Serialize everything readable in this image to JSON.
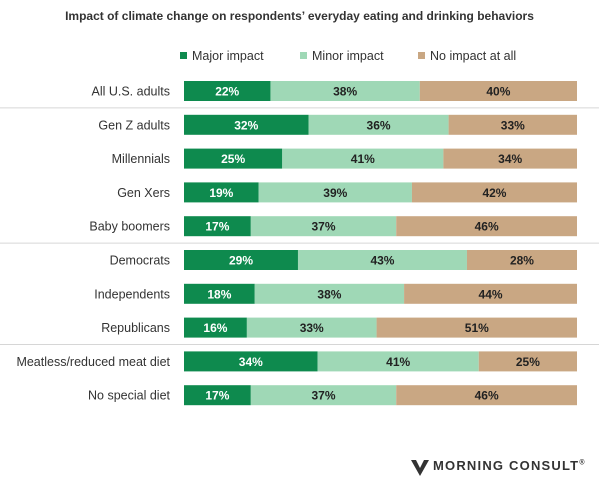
{
  "chart_data": {
    "type": "bar",
    "stacked": true,
    "orientation": "horizontal",
    "title": "Impact of climate change on respondents’ everyday eating and drinking behaviors",
    "categories": [
      "All U.S. adults",
      "Gen Z adults",
      "Millennials",
      "Gen Xers",
      "Baby boomers",
      "Democrats",
      "Independents",
      "Republicans",
      "Meatless/reduced meat diet",
      "No special diet"
    ],
    "series": [
      {
        "name": "Major impact",
        "color": "#0e8a4e",
        "values": [
          22,
          32,
          25,
          19,
          17,
          29,
          18,
          16,
          34,
          17
        ],
        "labels": [
          "22%",
          "32%",
          "25%",
          "19%",
          "17%",
          "29%",
          "18%",
          "16%",
          "34%",
          "17%"
        ]
      },
      {
        "name": "Minor impact",
        "color": "#9fd8b6",
        "values": [
          38,
          36,
          41,
          39,
          37,
          43,
          38,
          33,
          41,
          37
        ],
        "labels": [
          "38%",
          "36%",
          "41%",
          "39%",
          "37%",
          "43%",
          "38%",
          "33%",
          "41%",
          "37%"
        ]
      },
      {
        "name": "No impact at all",
        "color": "#c9a783",
        "values": [
          40,
          33,
          34,
          42,
          46,
          28,
          44,
          51,
          25,
          46
        ],
        "labels": [
          "40%",
          "33%",
          "34%",
          "42%",
          "46%",
          "28%",
          "44%",
          "51%",
          "25%",
          "46%"
        ]
      }
    ],
    "groups": [
      [
        0
      ],
      [
        1,
        2,
        3,
        4
      ],
      [
        5,
        6,
        7
      ],
      [
        8,
        9
      ]
    ],
    "legend_position": "top",
    "grid": false
  },
  "logo": {
    "text": "MORNING CONSULT",
    "mark": "®"
  }
}
